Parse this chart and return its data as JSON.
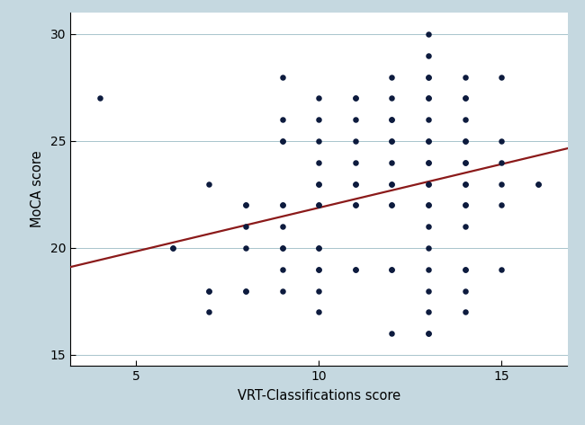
{
  "title": "",
  "xlabel": "VRT-Classifications score",
  "ylabel": "MoCA score",
  "background_color": "#c5d8e0",
  "plot_bg_color": "#ffffff",
  "dot_color": "#0d1b3e",
  "line_color": "#8b1a1a",
  "xlim": [
    3.2,
    16.8
  ],
  "ylim": [
    14.5,
    31
  ],
  "xticks": [
    5,
    10,
    15
  ],
  "yticks": [
    15,
    20,
    25,
    30
  ],
  "line_x_start": 3.2,
  "line_x_end": 16.8,
  "line_slope": 0.408,
  "line_intercept": 17.8,
  "points": [
    [
      4,
      27
    ],
    [
      6,
      20
    ],
    [
      6,
      20
    ],
    [
      7,
      18
    ],
    [
      7,
      18
    ],
    [
      7,
      17
    ],
    [
      7,
      23
    ],
    [
      8,
      22
    ],
    [
      8,
      22
    ],
    [
      8,
      21
    ],
    [
      8,
      20
    ],
    [
      8,
      18
    ],
    [
      8,
      18
    ],
    [
      9,
      28
    ],
    [
      9,
      26
    ],
    [
      9,
      25
    ],
    [
      9,
      25
    ],
    [
      9,
      22
    ],
    [
      9,
      22
    ],
    [
      9,
      21
    ],
    [
      9,
      20
    ],
    [
      9,
      20
    ],
    [
      9,
      19
    ],
    [
      9,
      18
    ],
    [
      10,
      27
    ],
    [
      10,
      26
    ],
    [
      10,
      25
    ],
    [
      10,
      24
    ],
    [
      10,
      23
    ],
    [
      10,
      23
    ],
    [
      10,
      22
    ],
    [
      10,
      22
    ],
    [
      10,
      20
    ],
    [
      10,
      20
    ],
    [
      10,
      19
    ],
    [
      10,
      19
    ],
    [
      10,
      18
    ],
    [
      10,
      17
    ],
    [
      11,
      27
    ],
    [
      11,
      27
    ],
    [
      11,
      26
    ],
    [
      11,
      25
    ],
    [
      11,
      24
    ],
    [
      11,
      23
    ],
    [
      11,
      23
    ],
    [
      11,
      22
    ],
    [
      11,
      22
    ],
    [
      11,
      19
    ],
    [
      11,
      19
    ],
    [
      12,
      28
    ],
    [
      12,
      27
    ],
    [
      12,
      26
    ],
    [
      12,
      26
    ],
    [
      12,
      25
    ],
    [
      12,
      25
    ],
    [
      12,
      24
    ],
    [
      12,
      23
    ],
    [
      12,
      23
    ],
    [
      12,
      22
    ],
    [
      12,
      22
    ],
    [
      12,
      19
    ],
    [
      12,
      19
    ],
    [
      12,
      16
    ],
    [
      13,
      30
    ],
    [
      13,
      29
    ],
    [
      13,
      28
    ],
    [
      13,
      28
    ],
    [
      13,
      27
    ],
    [
      13,
      27
    ],
    [
      13,
      26
    ],
    [
      13,
      25
    ],
    [
      13,
      25
    ],
    [
      13,
      24
    ],
    [
      13,
      24
    ],
    [
      13,
      23
    ],
    [
      13,
      23
    ],
    [
      13,
      22
    ],
    [
      13,
      22
    ],
    [
      13,
      21
    ],
    [
      13,
      20
    ],
    [
      13,
      19
    ],
    [
      13,
      18
    ],
    [
      13,
      17
    ],
    [
      13,
      16
    ],
    [
      13,
      16
    ],
    [
      14,
      28
    ],
    [
      14,
      27
    ],
    [
      14,
      27
    ],
    [
      14,
      26
    ],
    [
      14,
      25
    ],
    [
      14,
      25
    ],
    [
      14,
      24
    ],
    [
      14,
      24
    ],
    [
      14,
      23
    ],
    [
      14,
      23
    ],
    [
      14,
      22
    ],
    [
      14,
      22
    ],
    [
      14,
      21
    ],
    [
      14,
      19
    ],
    [
      14,
      19
    ],
    [
      14,
      18
    ],
    [
      14,
      17
    ],
    [
      15,
      28
    ],
    [
      15,
      25
    ],
    [
      15,
      24
    ],
    [
      15,
      23
    ],
    [
      15,
      22
    ],
    [
      15,
      19
    ],
    [
      16,
      23
    ],
    [
      16,
      23
    ]
  ]
}
